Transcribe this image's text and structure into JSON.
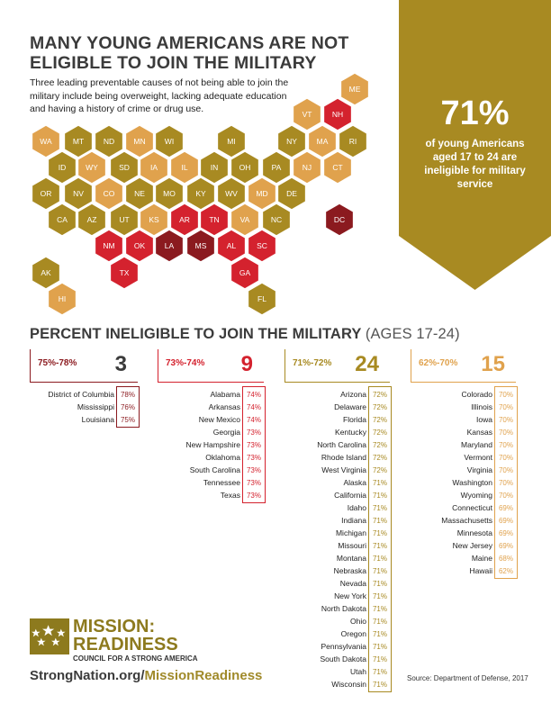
{
  "title": {
    "line1": "MANY YOUNG AMERICANS ARE NOT",
    "line2": "ELIGIBLE TO JOIN THE MILITARY"
  },
  "intro": "Three leading preventable causes of not being able to join the military include being overweight, lacking adequate education and having a history of crime or drug use.",
  "callout": {
    "percent": "71%",
    "text": "of young Americans aged 17 to 24 are ineligible for military service"
  },
  "colors": {
    "dark": "#8b1a1f",
    "red": "#d4222e",
    "olive": "#a88a22",
    "tan": "#e0a24d",
    "banner": "#a88a22"
  },
  "map": {
    "states": [
      {
        "abbr": "ME",
        "tier": "tan"
      },
      {
        "abbr": "VT",
        "tier": "tan"
      },
      {
        "abbr": "NH",
        "tier": "red"
      },
      {
        "abbr": "WA",
        "tier": "tan"
      },
      {
        "abbr": "MT",
        "tier": "olive"
      },
      {
        "abbr": "ND",
        "tier": "olive"
      },
      {
        "abbr": "MN",
        "tier": "tan"
      },
      {
        "abbr": "WI",
        "tier": "olive"
      },
      {
        "abbr": "MI",
        "tier": "olive"
      },
      {
        "abbr": "NY",
        "tier": "olive"
      },
      {
        "abbr": "MA",
        "tier": "tan"
      },
      {
        "abbr": "RI",
        "tier": "olive"
      },
      {
        "abbr": "ID",
        "tier": "olive"
      },
      {
        "abbr": "WY",
        "tier": "tan"
      },
      {
        "abbr": "SD",
        "tier": "olive"
      },
      {
        "abbr": "IA",
        "tier": "tan"
      },
      {
        "abbr": "IL",
        "tier": "tan"
      },
      {
        "abbr": "IN",
        "tier": "olive"
      },
      {
        "abbr": "OH",
        "tier": "olive"
      },
      {
        "abbr": "PA",
        "tier": "olive"
      },
      {
        "abbr": "NJ",
        "tier": "tan"
      },
      {
        "abbr": "CT",
        "tier": "tan"
      },
      {
        "abbr": "OR",
        "tier": "olive"
      },
      {
        "abbr": "NV",
        "tier": "olive"
      },
      {
        "abbr": "CO",
        "tier": "tan"
      },
      {
        "abbr": "NE",
        "tier": "olive"
      },
      {
        "abbr": "MO",
        "tier": "olive"
      },
      {
        "abbr": "KY",
        "tier": "olive"
      },
      {
        "abbr": "WV",
        "tier": "olive"
      },
      {
        "abbr": "MD",
        "tier": "tan"
      },
      {
        "abbr": "DE",
        "tier": "olive"
      },
      {
        "abbr": "CA",
        "tier": "olive"
      },
      {
        "abbr": "AZ",
        "tier": "olive"
      },
      {
        "abbr": "UT",
        "tier": "olive"
      },
      {
        "abbr": "KS",
        "tier": "tan"
      },
      {
        "abbr": "AR",
        "tier": "red"
      },
      {
        "abbr": "TN",
        "tier": "red"
      },
      {
        "abbr": "VA",
        "tier": "tan"
      },
      {
        "abbr": "NC",
        "tier": "olive"
      },
      {
        "abbr": "DC",
        "tier": "dark"
      },
      {
        "abbr": "NM",
        "tier": "red"
      },
      {
        "abbr": "OK",
        "tier": "red"
      },
      {
        "abbr": "LA",
        "tier": "dark"
      },
      {
        "abbr": "MS",
        "tier": "dark"
      },
      {
        "abbr": "AL",
        "tier": "red"
      },
      {
        "abbr": "SC",
        "tier": "red"
      },
      {
        "abbr": "TX",
        "tier": "red"
      },
      {
        "abbr": "GA",
        "tier": "red"
      },
      {
        "abbr": "AK",
        "tier": "olive"
      },
      {
        "abbr": "FL",
        "tier": "olive"
      },
      {
        "abbr": "HI",
        "tier": "tan"
      }
    ]
  },
  "section": {
    "title": "PERCENT INELIGIBLE TO JOIN THE MILITARY",
    "subtitle": "(AGES 17-24)"
  },
  "groups": [
    {
      "range": "75%-78%",
      "count": "3",
      "color": "#8b1a1f",
      "rows": [
        [
          "District of Columbia",
          "78%"
        ],
        [
          "Mississippi",
          "76%"
        ],
        [
          "Louisiana",
          "75%"
        ]
      ]
    },
    {
      "range": "73%-74%",
      "count": "9",
      "color": "#d4222e",
      "rows": [
        [
          "Alabama",
          "74%"
        ],
        [
          "Arkansas",
          "74%"
        ],
        [
          "New Mexico",
          "74%"
        ],
        [
          "Georgia",
          "73%"
        ],
        [
          "New Hampshire",
          "73%"
        ],
        [
          "Oklahoma",
          "73%"
        ],
        [
          "South Carolina",
          "73%"
        ],
        [
          "Tennessee",
          "73%"
        ],
        [
          "Texas",
          "73%"
        ]
      ]
    },
    {
      "range": "71%-72%",
      "count": "24",
      "color": "#a88a22",
      "rows": [
        [
          "Arizona",
          "72%"
        ],
        [
          "Delaware",
          "72%"
        ],
        [
          "Florida",
          "72%"
        ],
        [
          "Kentucky",
          "72%"
        ],
        [
          "North Carolina",
          "72%"
        ],
        [
          "Rhode Island",
          "72%"
        ],
        [
          "West Virginia",
          "72%"
        ],
        [
          "Alaska",
          "71%"
        ],
        [
          "California",
          "71%"
        ],
        [
          "Idaho",
          "71%"
        ],
        [
          "Indiana",
          "71%"
        ],
        [
          "Michigan",
          "71%"
        ],
        [
          "Missouri",
          "71%"
        ],
        [
          "Montana",
          "71%"
        ],
        [
          "Nebraska",
          "71%"
        ],
        [
          "Nevada",
          "71%"
        ],
        [
          "New York",
          "71%"
        ],
        [
          "North Dakota",
          "71%"
        ],
        [
          "Ohio",
          "71%"
        ],
        [
          "Oregon",
          "71%"
        ],
        [
          "Pennsylvania",
          "71%"
        ],
        [
          "South Dakota",
          "71%"
        ],
        [
          "Utah",
          "71%"
        ],
        [
          "Wisconsin",
          "71%"
        ]
      ]
    },
    {
      "range": "62%-70%",
      "count": "15",
      "color": "#e0a24d",
      "rows": [
        [
          "Colorado",
          "70%"
        ],
        [
          "Illinois",
          "70%"
        ],
        [
          "Iowa",
          "70%"
        ],
        [
          "Kansas",
          "70%"
        ],
        [
          "Maryland",
          "70%"
        ],
        [
          "Vermont",
          "70%"
        ],
        [
          "Virginia",
          "70%"
        ],
        [
          "Washington",
          "70%"
        ],
        [
          "Wyoming",
          "70%"
        ],
        [
          "Connecticut",
          "69%"
        ],
        [
          "Massachusetts",
          "69%"
        ],
        [
          "Minnesota",
          "69%"
        ],
        [
          "New Jersey",
          "69%"
        ],
        [
          "Maine",
          "68%"
        ],
        [
          "Hawaii",
          "62%"
        ]
      ]
    }
  ],
  "logo": {
    "line1": "MISSION:",
    "line2": "READINESS",
    "sub": "COUNCIL FOR A STRONG AMERICA"
  },
  "url": {
    "part1": "StrongNation.org/",
    "part2": "MissionReadiness"
  },
  "source": "Source: Department of Defense, 2017"
}
